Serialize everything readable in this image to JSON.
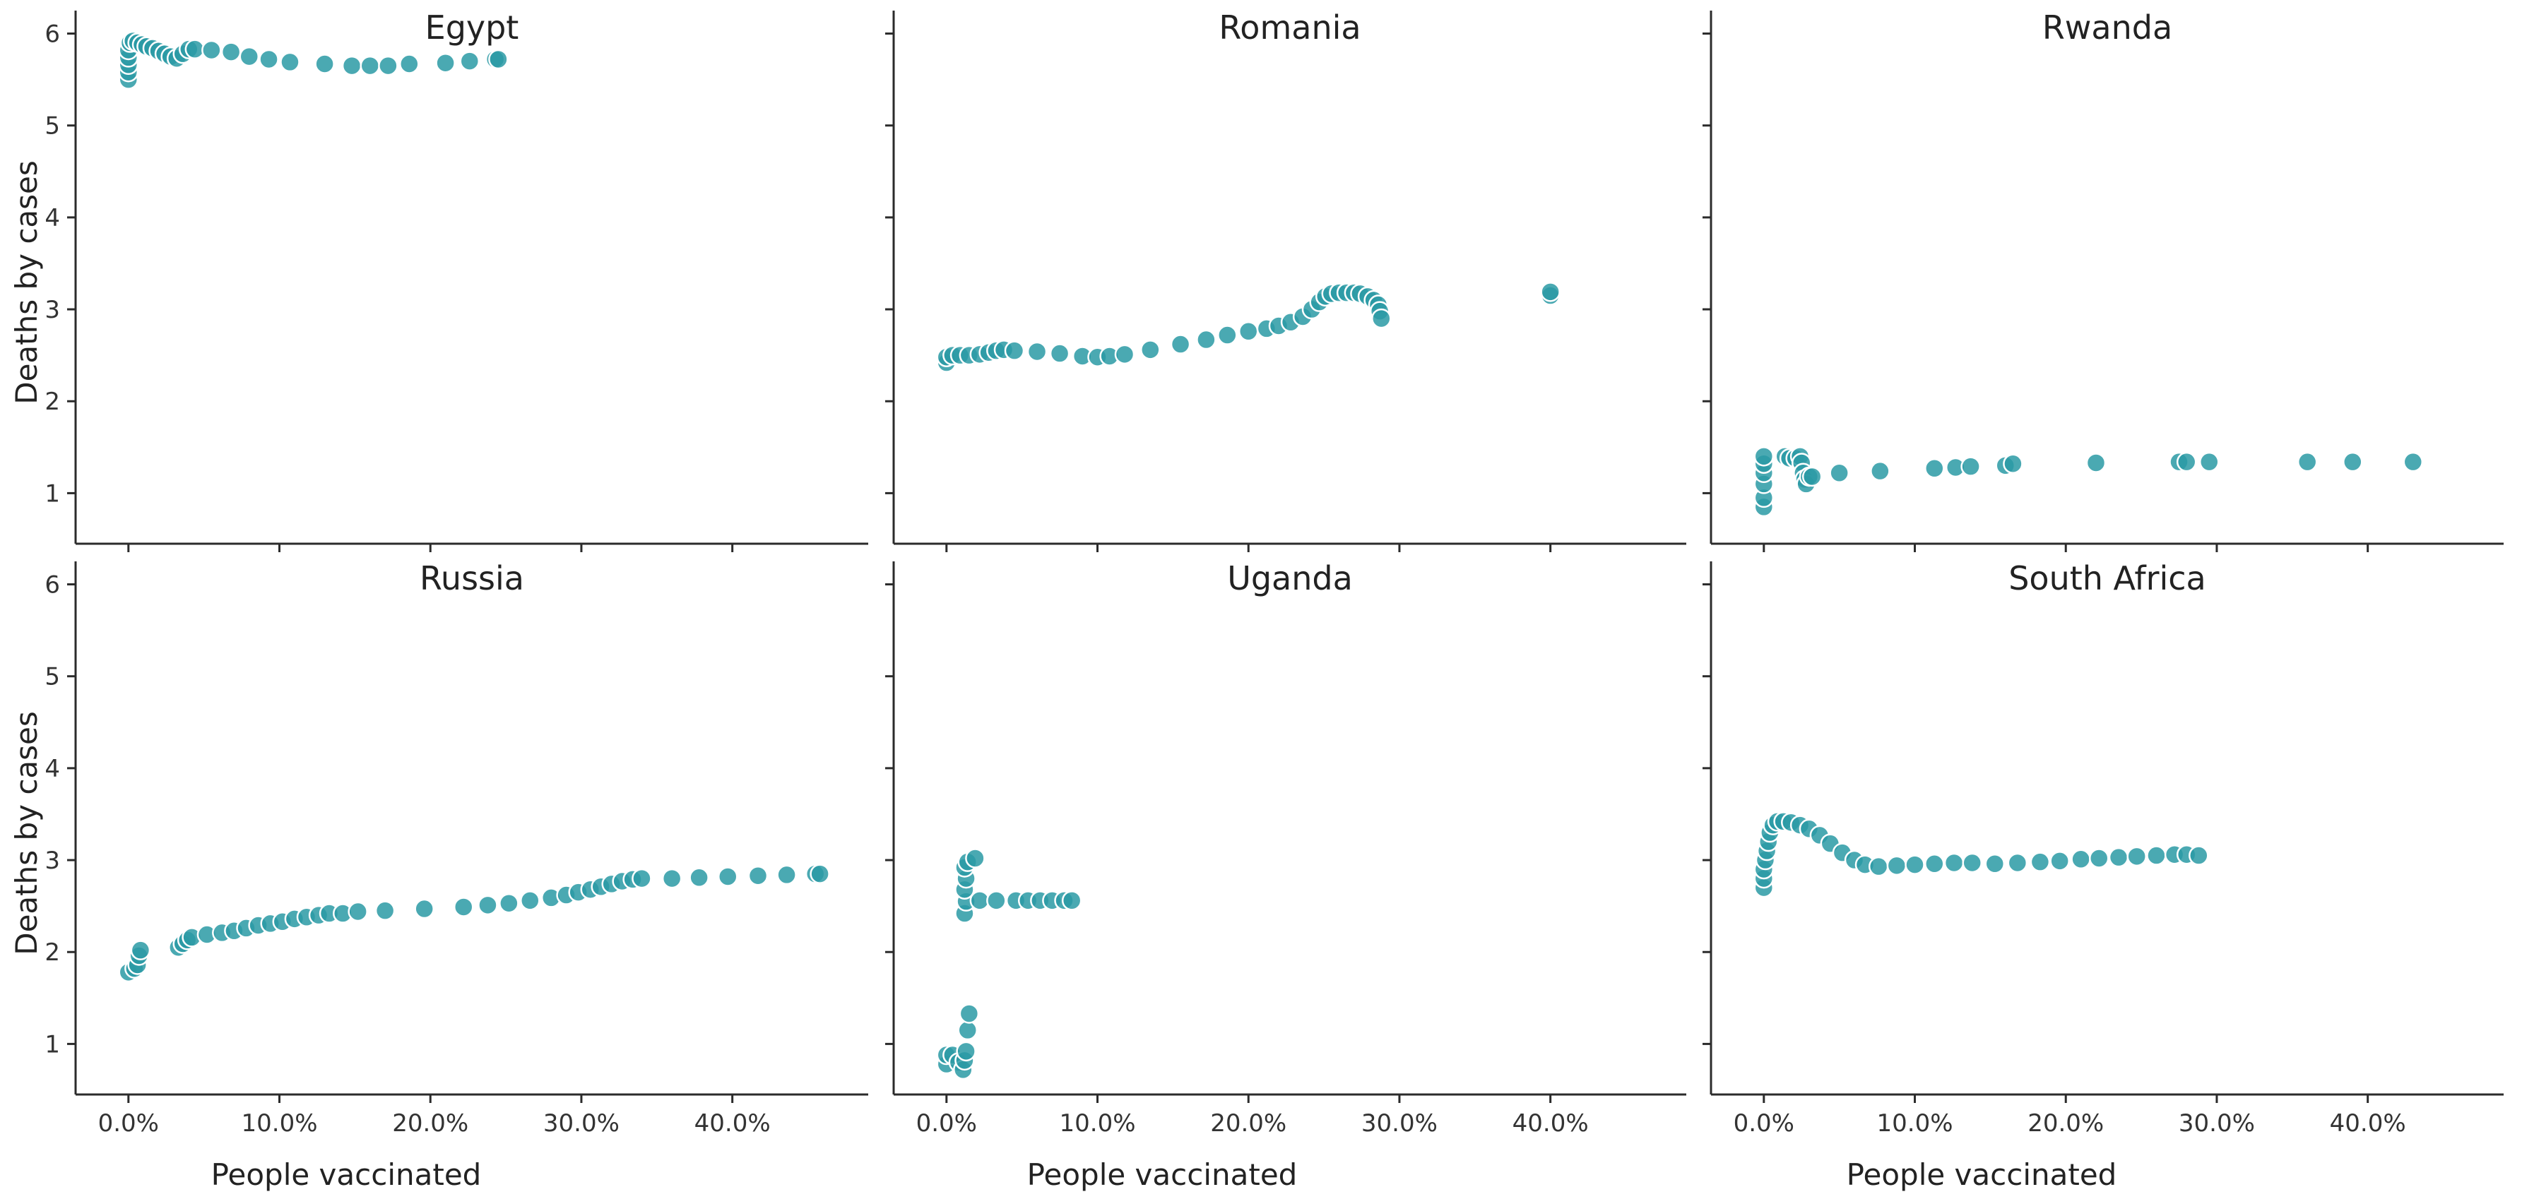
{
  "colors": {
    "point": "#2a9aa4",
    "axis": "#2b2b2b"
  },
  "chart_data": {
    "type": "scatter",
    "layout": "facet grid 2 rows x 3 columns, shared axes",
    "xlabel": "People vaccinated",
    "ylabel": "Deaths by cases",
    "xlim": [
      -0.035,
      0.49
    ],
    "ylim": [
      0.45,
      6.25
    ],
    "xticks": [
      0,
      0.1,
      0.2,
      0.3,
      0.4
    ],
    "xtick_labels": [
      "0.0%",
      "10.0%",
      "20.0%",
      "30.0%",
      "40.0%"
    ],
    "yticks": [
      1,
      2,
      3,
      4,
      5,
      6
    ],
    "ytick_labels": [
      "1",
      "2",
      "3",
      "4",
      "5",
      "6"
    ],
    "panels": [
      {
        "title": "Egypt",
        "points": [
          [
            0,
            5.5
          ],
          [
            0,
            5.58
          ],
          [
            0,
            5.66
          ],
          [
            0,
            5.74
          ],
          [
            0,
            5.82
          ],
          [
            0.001,
            5.9
          ],
          [
            0.003,
            5.92
          ],
          [
            0.006,
            5.9
          ],
          [
            0.009,
            5.88
          ],
          [
            0.012,
            5.86
          ],
          [
            0.016,
            5.84
          ],
          [
            0.02,
            5.81
          ],
          [
            0.024,
            5.78
          ],
          [
            0.028,
            5.75
          ],
          [
            0.032,
            5.73
          ],
          [
            0.036,
            5.78
          ],
          [
            0.04,
            5.83
          ],
          [
            0.044,
            5.83
          ],
          [
            0.055,
            5.82
          ],
          [
            0.068,
            5.8
          ],
          [
            0.08,
            5.75
          ],
          [
            0.093,
            5.72
          ],
          [
            0.107,
            5.69
          ],
          [
            0.13,
            5.67
          ],
          [
            0.148,
            5.65
          ],
          [
            0.16,
            5.65
          ],
          [
            0.172,
            5.65
          ],
          [
            0.186,
            5.67
          ],
          [
            0.21,
            5.68
          ],
          [
            0.226,
            5.7
          ],
          [
            0.243,
            5.72
          ],
          [
            0.245,
            5.72
          ]
        ]
      },
      {
        "title": "Romania",
        "points": [
          [
            0,
            2.42
          ],
          [
            0,
            2.48
          ],
          [
            0.004,
            2.5
          ],
          [
            0.009,
            2.5
          ],
          [
            0.015,
            2.5
          ],
          [
            0.022,
            2.51
          ],
          [
            0.028,
            2.53
          ],
          [
            0.033,
            2.55
          ],
          [
            0.038,
            2.56
          ],
          [
            0.045,
            2.55
          ],
          [
            0.06,
            2.54
          ],
          [
            0.075,
            2.52
          ],
          [
            0.09,
            2.49
          ],
          [
            0.1,
            2.48
          ],
          [
            0.108,
            2.49
          ],
          [
            0.118,
            2.51
          ],
          [
            0.135,
            2.56
          ],
          [
            0.155,
            2.62
          ],
          [
            0.172,
            2.67
          ],
          [
            0.186,
            2.72
          ],
          [
            0.2,
            2.76
          ],
          [
            0.212,
            2.79
          ],
          [
            0.22,
            2.82
          ],
          [
            0.228,
            2.86
          ],
          [
            0.236,
            2.92
          ],
          [
            0.242,
            3.0
          ],
          [
            0.247,
            3.08
          ],
          [
            0.251,
            3.14
          ],
          [
            0.255,
            3.17
          ],
          [
            0.26,
            3.18
          ],
          [
            0.265,
            3.18
          ],
          [
            0.27,
            3.18
          ],
          [
            0.274,
            3.17
          ],
          [
            0.279,
            3.14
          ],
          [
            0.283,
            3.1
          ],
          [
            0.286,
            3.05
          ],
          [
            0.287,
            2.98
          ],
          [
            0.288,
            2.9
          ],
          [
            0.4,
            3.15
          ],
          [
            0.4,
            3.19
          ]
        ]
      },
      {
        "title": "Rwanda",
        "points": [
          [
            0,
            0.85
          ],
          [
            0,
            0.95
          ],
          [
            0,
            1.1
          ],
          [
            0,
            1.22
          ],
          [
            0,
            1.32
          ],
          [
            0,
            1.4
          ],
          [
            0.014,
            1.4
          ],
          [
            0.017,
            1.38
          ],
          [
            0.021,
            1.38
          ],
          [
            0.024,
            1.4
          ],
          [
            0.025,
            1.33
          ],
          [
            0.026,
            1.22
          ],
          [
            0.027,
            1.15
          ],
          [
            0.028,
            1.1
          ],
          [
            0.03,
            1.18
          ],
          [
            0.032,
            1.18
          ],
          [
            0.05,
            1.22
          ],
          [
            0.077,
            1.24
          ],
          [
            0.113,
            1.27
          ],
          [
            0.127,
            1.28
          ],
          [
            0.137,
            1.29
          ],
          [
            0.16,
            1.3
          ],
          [
            0.165,
            1.32
          ],
          [
            0.22,
            1.33
          ],
          [
            0.275,
            1.34
          ],
          [
            0.28,
            1.34
          ],
          [
            0.295,
            1.34
          ],
          [
            0.36,
            1.34
          ],
          [
            0.39,
            1.34
          ],
          [
            0.43,
            1.34
          ]
        ]
      },
      {
        "title": "Russia",
        "points": [
          [
            0,
            1.78
          ],
          [
            0.004,
            1.82
          ],
          [
            0.006,
            1.86
          ],
          [
            0.007,
            1.96
          ],
          [
            0.008,
            2.02
          ],
          [
            0.033,
            2.05
          ],
          [
            0.036,
            2.09
          ],
          [
            0.039,
            2.13
          ],
          [
            0.042,
            2.16
          ],
          [
            0.052,
            2.19
          ],
          [
            0.062,
            2.21
          ],
          [
            0.07,
            2.23
          ],
          [
            0.078,
            2.26
          ],
          [
            0.086,
            2.29
          ],
          [
            0.094,
            2.31
          ],
          [
            0.102,
            2.33
          ],
          [
            0.11,
            2.36
          ],
          [
            0.118,
            2.38
          ],
          [
            0.126,
            2.4
          ],
          [
            0.133,
            2.42
          ],
          [
            0.142,
            2.42
          ],
          [
            0.152,
            2.44
          ],
          [
            0.17,
            2.45
          ],
          [
            0.196,
            2.47
          ],
          [
            0.222,
            2.49
          ],
          [
            0.238,
            2.51
          ],
          [
            0.252,
            2.53
          ],
          [
            0.266,
            2.56
          ],
          [
            0.28,
            2.59
          ],
          [
            0.29,
            2.62
          ],
          [
            0.298,
            2.65
          ],
          [
            0.306,
            2.68
          ],
          [
            0.313,
            2.71
          ],
          [
            0.32,
            2.74
          ],
          [
            0.327,
            2.77
          ],
          [
            0.334,
            2.79
          ],
          [
            0.34,
            2.8
          ],
          [
            0.36,
            2.8
          ],
          [
            0.378,
            2.81
          ],
          [
            0.397,
            2.82
          ],
          [
            0.417,
            2.83
          ],
          [
            0.436,
            2.84
          ],
          [
            0.455,
            2.85
          ],
          [
            0.458,
            2.85
          ]
        ]
      },
      {
        "title": "Uganda",
        "points": [
          [
            0,
            0.78
          ],
          [
            0,
            0.88
          ],
          [
            0.004,
            0.88
          ],
          [
            0.008,
            0.8
          ],
          [
            0.011,
            0.72
          ],
          [
            0.012,
            0.82
          ],
          [
            0.013,
            0.92
          ],
          [
            0.014,
            1.15
          ],
          [
            0.015,
            1.33
          ],
          [
            0.012,
            2.42
          ],
          [
            0.013,
            2.55
          ],
          [
            0.012,
            2.68
          ],
          [
            0.013,
            2.8
          ],
          [
            0.012,
            2.92
          ],
          [
            0.014,
            2.98
          ],
          [
            0.019,
            3.02
          ],
          [
            0.022,
            2.56
          ],
          [
            0.033,
            2.56
          ],
          [
            0.046,
            2.56
          ],
          [
            0.054,
            2.56
          ],
          [
            0.062,
            2.56
          ],
          [
            0.07,
            2.56
          ],
          [
            0.078,
            2.56
          ],
          [
            0.083,
            2.56
          ]
        ]
      },
      {
        "title": "South Africa",
        "points": [
          [
            0,
            2.7
          ],
          [
            0,
            2.8
          ],
          [
            0,
            2.9
          ],
          [
            0.001,
            3.0
          ],
          [
            0.002,
            3.1
          ],
          [
            0.003,
            3.2
          ],
          [
            0.004,
            3.3
          ],
          [
            0.006,
            3.38
          ],
          [
            0.009,
            3.42
          ],
          [
            0.013,
            3.42
          ],
          [
            0.018,
            3.41
          ],
          [
            0.024,
            3.38
          ],
          [
            0.03,
            3.34
          ],
          [
            0.037,
            3.27
          ],
          [
            0.044,
            3.18
          ],
          [
            0.052,
            3.08
          ],
          [
            0.06,
            3.0
          ],
          [
            0.067,
            2.95
          ],
          [
            0.076,
            2.93
          ],
          [
            0.088,
            2.94
          ],
          [
            0.1,
            2.95
          ],
          [
            0.113,
            2.96
          ],
          [
            0.126,
            2.97
          ],
          [
            0.138,
            2.97
          ],
          [
            0.153,
            2.96
          ],
          [
            0.168,
            2.97
          ],
          [
            0.183,
            2.98
          ],
          [
            0.196,
            2.99
          ],
          [
            0.21,
            3.01
          ],
          [
            0.222,
            3.02
          ],
          [
            0.235,
            3.03
          ],
          [
            0.247,
            3.04
          ],
          [
            0.26,
            3.05
          ],
          [
            0.272,
            3.06
          ],
          [
            0.28,
            3.06
          ],
          [
            0.288,
            3.05
          ]
        ]
      }
    ]
  }
}
